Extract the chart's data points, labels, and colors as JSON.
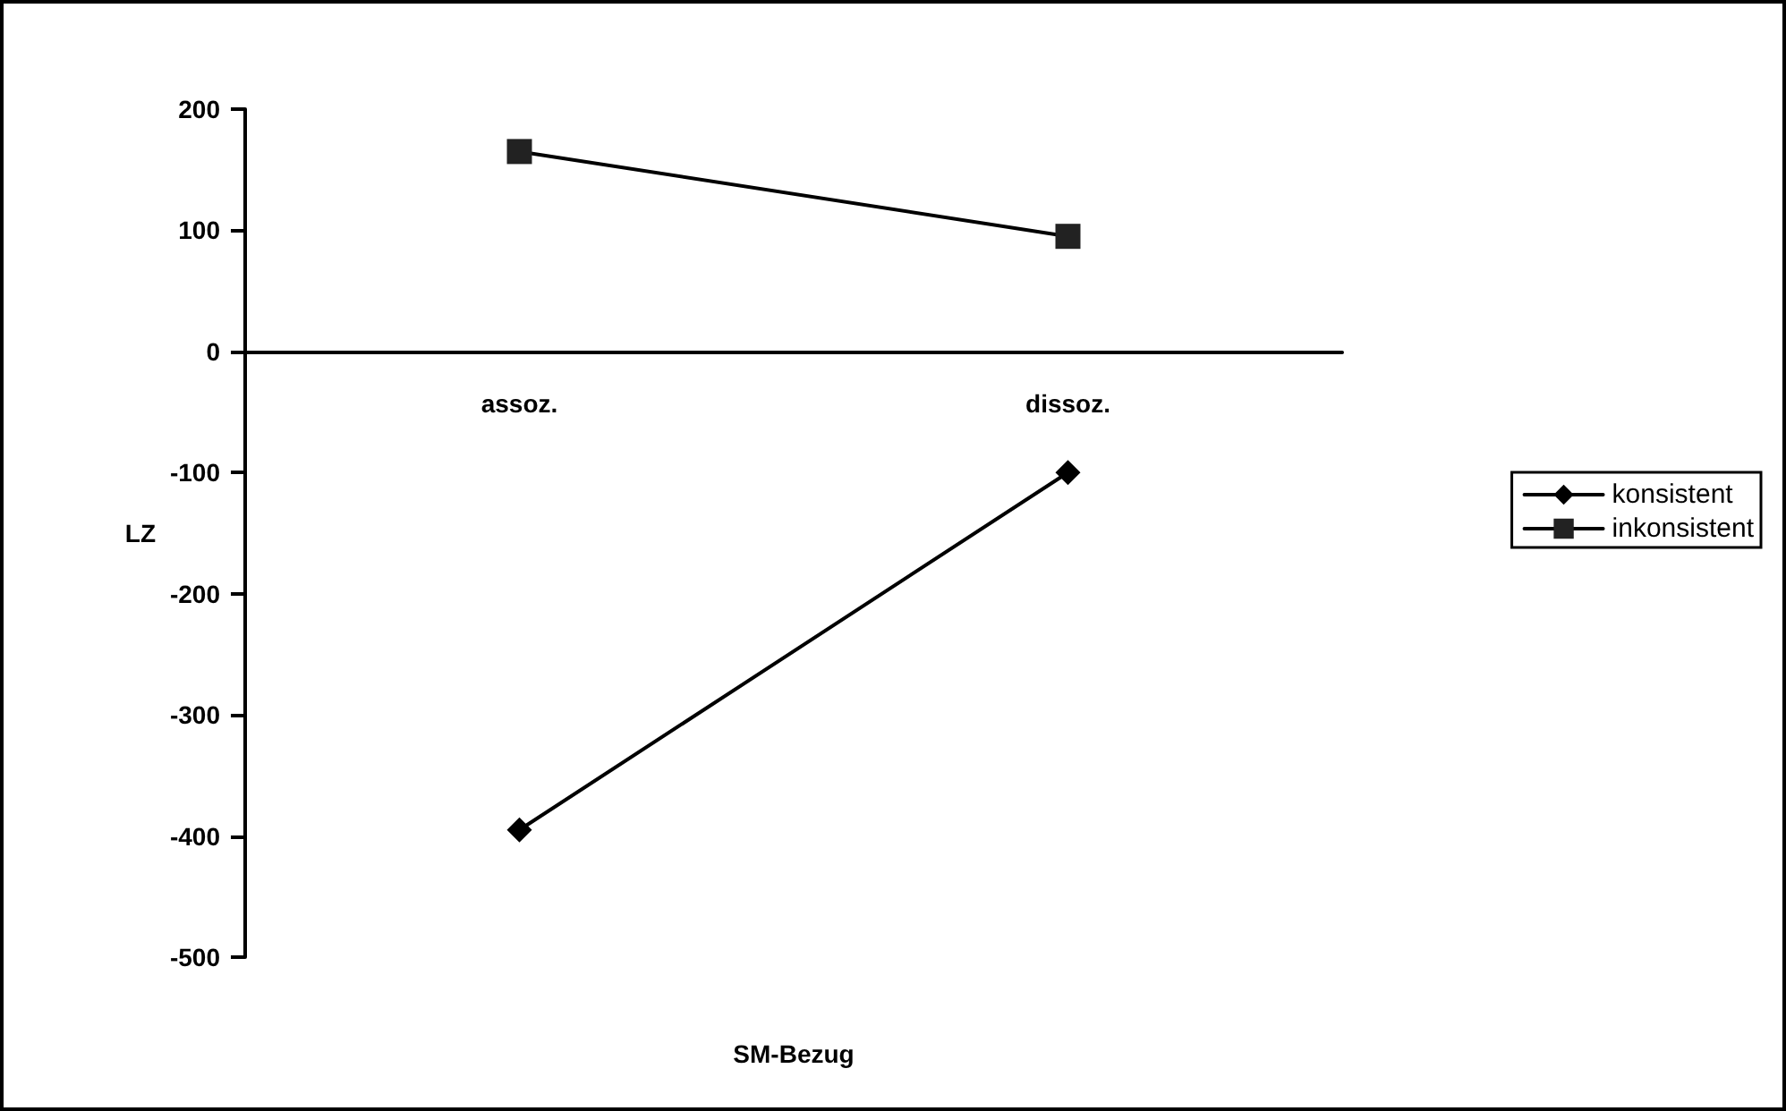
{
  "chart_data": {
    "type": "line",
    "xlabel": "SM-Bezug",
    "ylabel": "LZ",
    "categories": [
      "assoz.",
      "dissoz."
    ],
    "series": [
      {
        "name": "konsistent",
        "color": "#000000",
        "marker": "diamond",
        "values": [
          -395,
          -100
        ]
      },
      {
        "name": "inkonsistent",
        "color": "#222222",
        "marker": "square",
        "values": [
          165,
          95
        ]
      }
    ],
    "ylim": [
      -500,
      200
    ],
    "yticks": [
      -500,
      -400,
      -300,
      -200,
      -100,
      0,
      100,
      200
    ],
    "grid": false,
    "legend": "right",
    "line_style": "solid"
  }
}
